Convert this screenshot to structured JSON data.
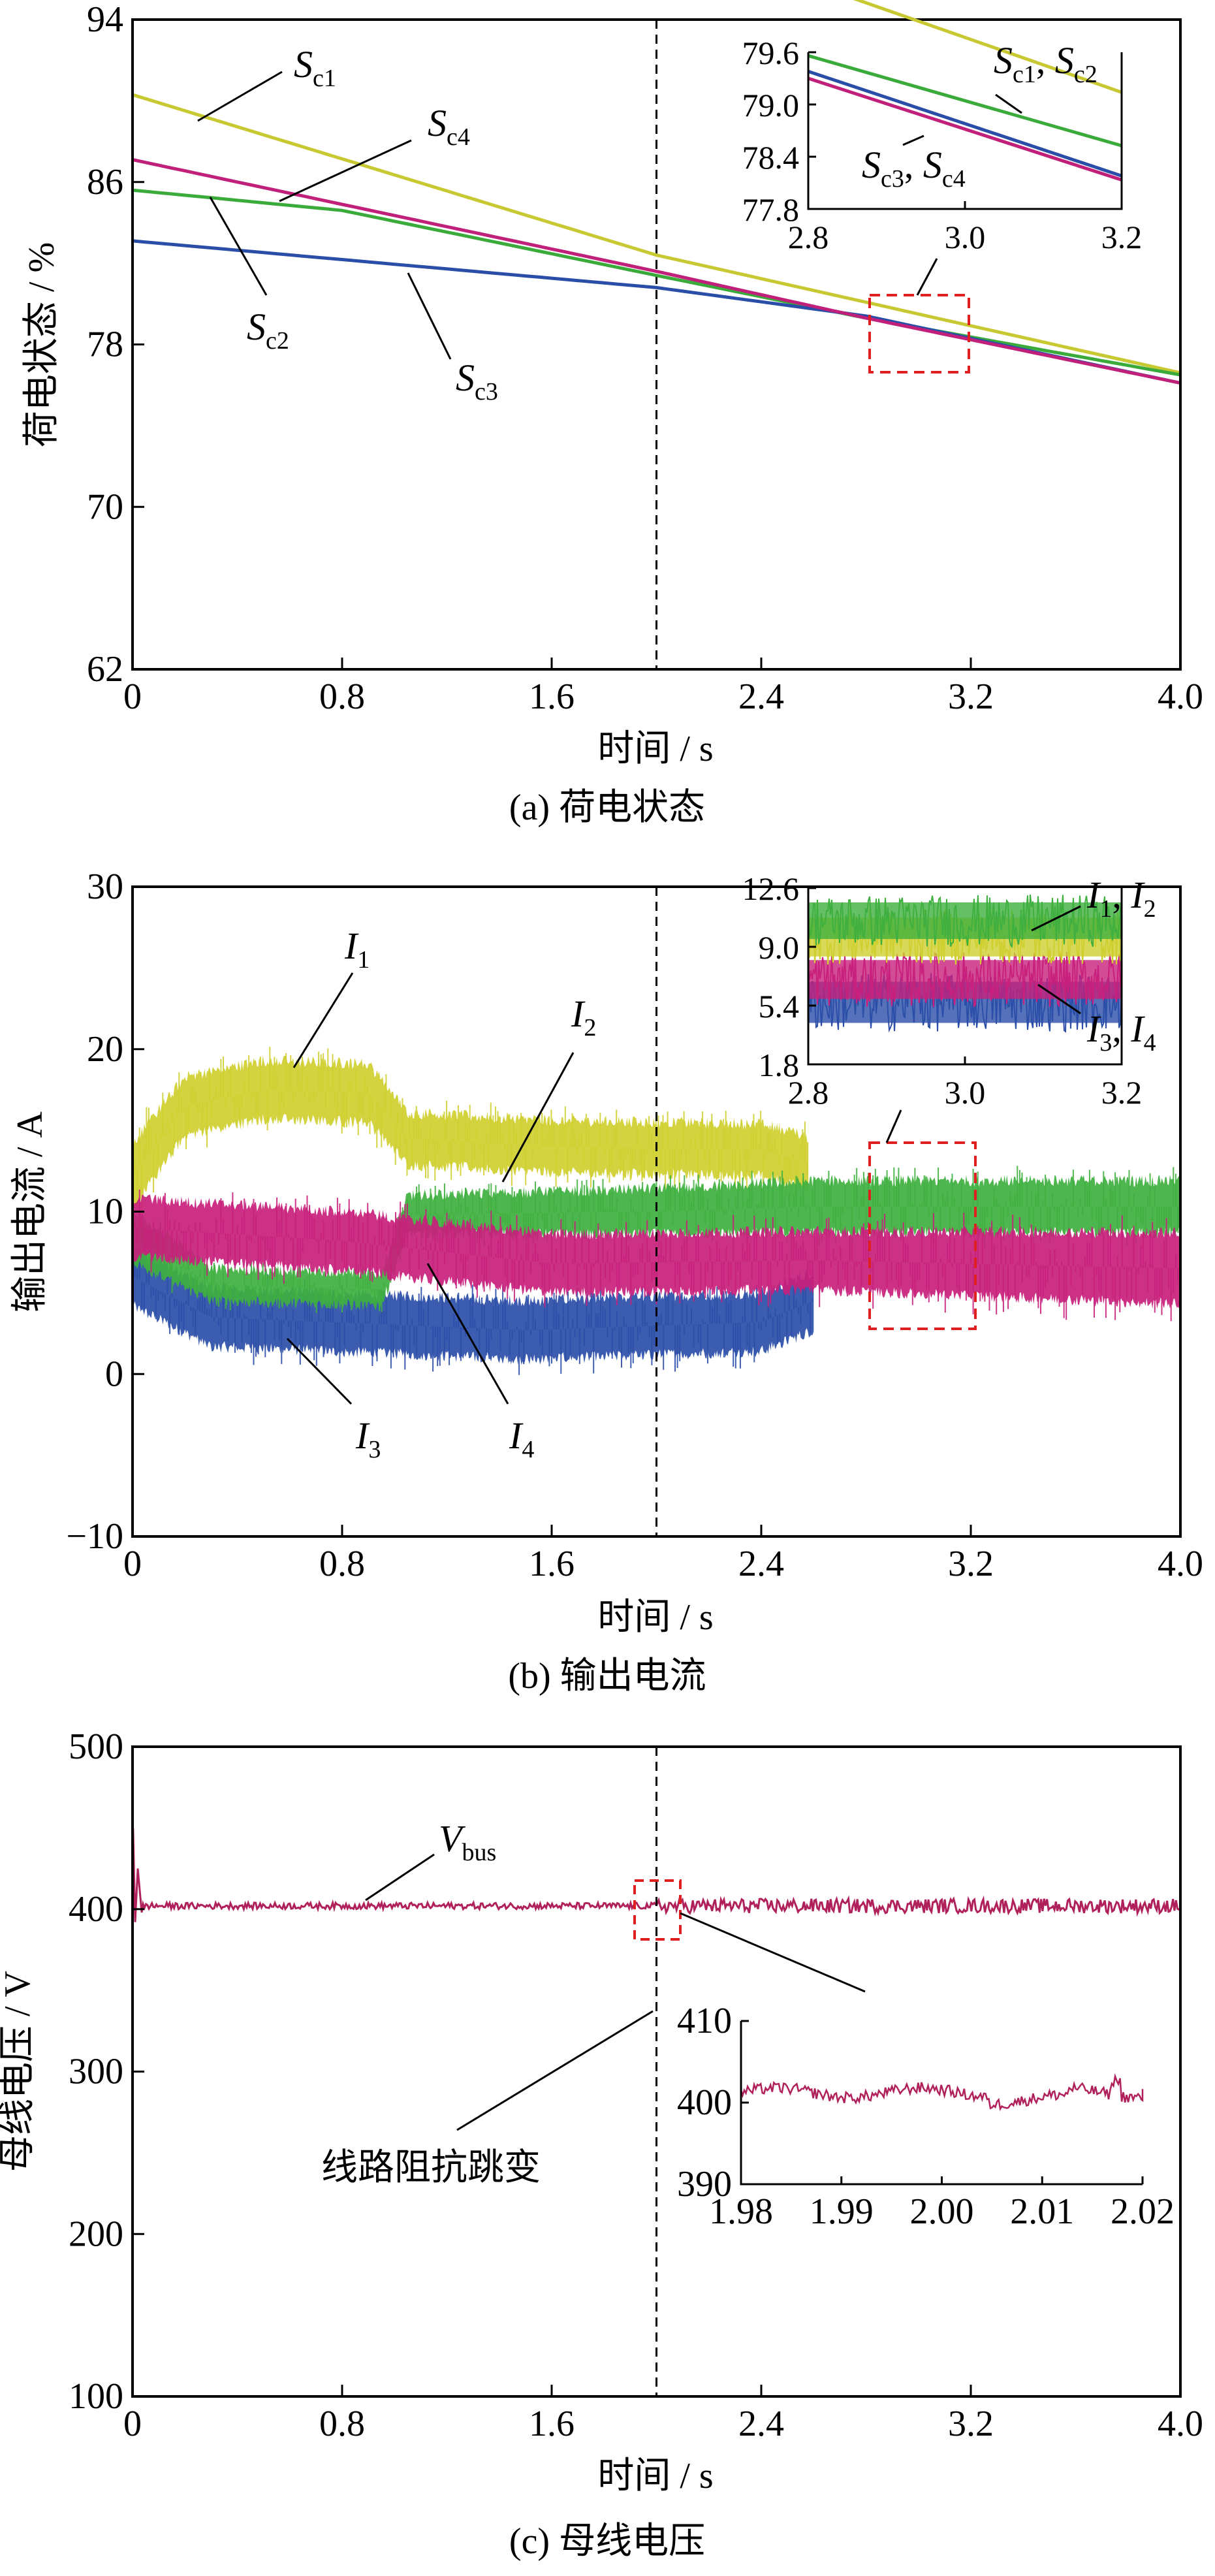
{
  "chart_data": [
    {
      "id": "a",
      "type": "line",
      "caption": "(a)  荷电状态",
      "xlabel": "时间 / s",
      "ylabel": "荷电状态 / %",
      "xlim": [
        0,
        4.0
      ],
      "ylim": [
        62,
        94
      ],
      "xticks": [
        "0",
        "0.8",
        "1.6",
        "2.4",
        "3.2",
        "4.0"
      ],
      "yticks": [
        "62",
        "70",
        "78",
        "86",
        "94"
      ],
      "event_time": 2.0,
      "series": [
        {
          "label_main": "S",
          "label_sub": "c1",
          "color": "#c8c832",
          "points": [
            [
              0,
              90.3
            ],
            [
              2.0,
              82.4
            ],
            [
              4.0,
              76.6
            ]
          ]
        },
        {
          "label_main": "S",
          "label_sub": "c2",
          "color": "#3aaa3a",
          "points": [
            [
              0,
              85.6
            ],
            [
              0.8,
              84.6
            ],
            [
              2.0,
              81.4
            ],
            [
              2.8,
              79.3
            ],
            [
              4.0,
              76.5
            ]
          ]
        },
        {
          "label_main": "S",
          "label_sub": "c3",
          "color": "#2a4ea8",
          "points": [
            [
              0,
              83.1
            ],
            [
              2.0,
              80.8
            ],
            [
              2.8,
              79.4
            ],
            [
              4.0,
              76.1
            ]
          ]
        },
        {
          "label_main": "S",
          "label_sub": "c4",
          "color": "#c0207a",
          "points": [
            [
              0,
              87.1
            ],
            [
              2.0,
              81.6
            ],
            [
              2.8,
              79.3
            ],
            [
              4.0,
              76.1
            ]
          ]
        }
      ],
      "inset": {
        "xlim": [
          2.8,
          3.2
        ],
        "ylim": [
          77.8,
          79.6
        ],
        "xticks": [
          "2.8",
          "3.0",
          "3.2"
        ],
        "yticks": [
          "77.8",
          "78.4",
          "79.0",
          "79.6"
        ],
        "label_top": {
          "a": "S",
          "a_sub": "c1",
          "sep": ", ",
          "b": "S",
          "b_sub": "c2"
        },
        "label_bottom": {
          "a": "S",
          "a_sub": "c3",
          "sep": ", ",
          "b": "S",
          "b_sub": "c4"
        }
      }
    },
    {
      "id": "b",
      "type": "line",
      "caption": "(b)  输出电流",
      "xlabel": "时间 / s",
      "ylabel": "输出电流 / A",
      "xlim": [
        0,
        4.0
      ],
      "ylim": [
        -10,
        30
      ],
      "xticks": [
        "0",
        "0.8",
        "1.6",
        "2.4",
        "3.2",
        "4.0"
      ],
      "yticks": [
        "−10",
        "0",
        "10",
        "20",
        "30"
      ],
      "event_time": 2.0,
      "series": [
        {
          "label_main": "I",
          "label_sub": "1",
          "color": "#cfcf30",
          "band": [
            [
              0,
              12.2,
              2.0
            ],
            [
              0.2,
              16.5,
              1.8
            ],
            [
              0.5,
              17.5,
              1.8
            ],
            [
              0.9,
              17.3,
              1.8
            ],
            [
              1.05,
              14.5,
              1.6
            ],
            [
              1.6,
              14.0,
              1.6
            ],
            [
              2.4,
              13.8,
              1.6
            ],
            [
              2.58,
              13.0,
              1.6
            ]
          ]
        },
        {
          "label_main": "I",
          "label_sub": "2",
          "color": "#3fb03f",
          "band": [
            [
              0,
              8.5,
              1.6
            ],
            [
              0.3,
              5.5,
              1.0
            ],
            [
              0.95,
              5.2,
              1.0
            ],
            [
              1.05,
              9.8,
              1.2
            ],
            [
              2.0,
              10.0,
              1.4
            ],
            [
              2.6,
              10.3,
              1.6
            ],
            [
              4.0,
              10.3,
              1.6
            ]
          ]
        },
        {
          "label_main": "I",
          "label_sub": "3",
          "color": "#2b4ea8",
          "band": [
            [
              0,
              6.0,
              1.8
            ],
            [
              0.3,
              3.5,
              1.8
            ],
            [
              1.5,
              2.7,
              1.8
            ],
            [
              2.4,
              3.2,
              1.8
            ],
            [
              2.6,
              4.5,
              1.8
            ]
          ]
        },
        {
          "label_main": "I",
          "label_sub": "4",
          "color": "#c8207c",
          "band": [
            [
              0,
              9.0,
              1.8
            ],
            [
              0.8,
              8.2,
              1.8
            ],
            [
              1.6,
              6.8,
              1.8
            ],
            [
              2.6,
              7.0,
              1.8
            ],
            [
              4.0,
              6.5,
              2.2
            ]
          ]
        }
      ],
      "inset": {
        "xlim": [
          2.8,
          3.2
        ],
        "ylim": [
          1.8,
          12.6
        ],
        "xticks": [
          "2.8",
          "3.0",
          "3.2"
        ],
        "yticks": [
          "1.8",
          "5.4",
          "9.0",
          "12.6"
        ],
        "label_top": {
          "a": "I",
          "a_sub": "1",
          "sep": ", ",
          "b": "I",
          "b_sub": "2"
        },
        "label_bottom": {
          "a": "I",
          "a_sub": "3",
          "sep": ", ",
          "b": "I",
          "b_sub": "4"
        }
      }
    },
    {
      "id": "c",
      "type": "line",
      "caption": "(c)  母线电压",
      "xlabel": "时间 / s",
      "ylabel": "母线电压 / V",
      "xlim": [
        0,
        4.0
      ],
      "ylim": [
        100,
        500
      ],
      "xticks": [
        "0",
        "0.8",
        "1.6",
        "2.4",
        "3.2",
        "4.0"
      ],
      "yticks": [
        "100",
        "200",
        "300",
        "400",
        "500"
      ],
      "event_time": 2.0,
      "series": [
        {
          "label_main": "V",
          "label_sub": "bus",
          "color": "#b0205a",
          "level": 402
        }
      ],
      "event_label": "线路阻抗跳变",
      "inset": {
        "xlim": [
          1.98,
          2.02
        ],
        "ylim": [
          390,
          410
        ],
        "xticks": [
          "1.98",
          "1.99",
          "2.00",
          "2.01",
          "2.02"
        ],
        "yticks": [
          "390",
          "400",
          "410"
        ]
      }
    }
  ]
}
